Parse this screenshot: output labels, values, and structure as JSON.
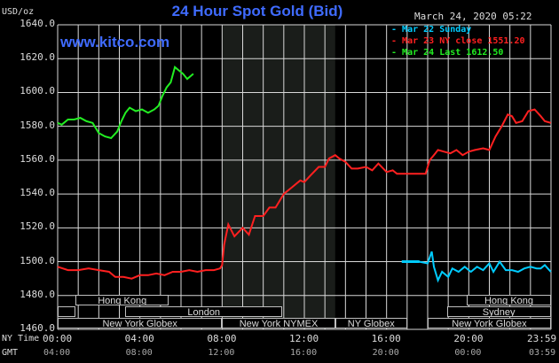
{
  "page": {
    "title": "24 Hour Spot Gold (Bid)",
    "website": "www.kitco.com",
    "unit_label": "USD/oz",
    "datestamp": "March 24, 2020 05:22",
    "time_axis_label_ny": "NY Time",
    "time_axis_label_gmt": "GMT"
  },
  "legend": [
    {
      "text": "Mar 22 Sunday",
      "color": "#00ccff"
    },
    {
      "text": "Mar 23 NY close 1551.20",
      "color": "#ff2020"
    },
    {
      "text": "Mar 24 Last 1612.50",
      "color": "#22ee22"
    }
  ],
  "y_ticks": [
    "1640.0",
    "1620.0",
    "1600.0",
    "1580.0",
    "1560.0",
    "1540.0",
    "1520.0",
    "1500.0",
    "1480.0",
    "1460.0"
  ],
  "x_ticks_ny": [
    "00:00",
    "04:00",
    "08:00",
    "12:00",
    "16:00",
    "20:00",
    "23:59"
  ],
  "x_ticks_gmt": [
    "04:00",
    "08:00",
    "12:00",
    "16:00",
    "20:00",
    "00:00",
    "03:59"
  ],
  "sessions": [
    {
      "label": "Hong Kong",
      "start_h": 0.88,
      "end_h": 5.4
    },
    {
      "label": "",
      "start_h": 0.0,
      "end_h": 0.88
    },
    {
      "label": "London",
      "start_h": 3.28,
      "end_h": 10.94
    },
    {
      "label": "",
      "start_h": 0.0,
      "end_h": 3.28
    },
    {
      "label": "New York Globex",
      "start_h": 0.0,
      "end_h": 8.0
    },
    {
      "label": "New York NYMEX",
      "start_h": 8.0,
      "end_h": 13.5
    },
    {
      "label": "NY Globex",
      "start_h": 13.5,
      "end_h": 17.0
    },
    {
      "label": "Hong Kong",
      "start_h": 19.91,
      "end_h": 23.99
    },
    {
      "label": "Sydney",
      "start_h": 18.93,
      "end_h": 23.99
    },
    {
      "label": "New York Globex",
      "start_h": 18.0,
      "end_h": 23.99
    }
  ],
  "chart_data": {
    "type": "line",
    "title": "24 Hour Spot Gold (Bid)",
    "ylabel": "USD/oz",
    "xlabel": "NY Time",
    "ylim": [
      1460,
      1640
    ],
    "xlim_hours": [
      0,
      24
    ],
    "shaded_region_hours": [
      8.0,
      13.5
    ],
    "series": [
      {
        "name": "Mar 22 Sunday",
        "color": "#00ccff",
        "x": [
          17.6,
          18.0,
          18.2,
          18.3,
          18.5,
          18.7,
          19.0,
          19.2,
          19.5,
          19.8,
          20.1,
          20.4,
          20.7,
          21.0,
          21.2,
          21.5,
          21.8,
          22.1,
          22.4,
          22.7,
          23.0,
          23.3,
          23.5,
          23.7,
          23.99
        ],
        "y": [
          1500,
          1499,
          1506,
          1497,
          1489,
          1494,
          1491,
          1496,
          1494,
          1497,
          1494,
          1497,
          1495,
          1499,
          1494,
          1500,
          1495,
          1495,
          1494,
          1496,
          1497,
          1496,
          1496,
          1498,
          1494
        ]
      },
      {
        "name": "Mar 23 NY close 1551.20",
        "color": "#ff2020",
        "x": [
          0.0,
          0.5,
          1.0,
          1.5,
          2.0,
          2.5,
          2.8,
          3.2,
          3.6,
          4.0,
          4.4,
          4.8,
          5.2,
          5.6,
          6.0,
          6.4,
          6.8,
          7.2,
          7.6,
          7.9,
          8.0,
          8.1,
          8.3,
          8.6,
          9.0,
          9.3,
          9.6,
          10.0,
          10.3,
          10.6,
          11.0,
          11.4,
          11.8,
          12.0,
          12.3,
          12.7,
          13.0,
          13.2,
          13.5,
          13.7,
          14.0,
          14.3,
          14.6,
          15.0,
          15.3,
          15.6,
          16.0,
          16.3,
          16.5,
          16.7,
          17.0,
          17.3,
          17.6,
          17.9,
          18.1,
          18.3,
          18.5,
          18.8,
          19.1,
          19.4,
          19.7,
          20.0,
          20.3,
          20.7,
          21.0,
          21.3,
          21.6,
          21.9,
          22.1,
          22.3,
          22.6,
          22.9,
          23.2,
          23.5,
          23.7,
          23.99
        ],
        "y": [
          1497,
          1495,
          1495,
          1496,
          1495,
          1494,
          1491,
          1491,
          1490,
          1492,
          1492,
          1493,
          1492,
          1494,
          1494,
          1495,
          1494,
          1495,
          1495,
          1496,
          1498,
          1510,
          1522,
          1515,
          1520,
          1516,
          1527,
          1527,
          1532,
          1532,
          1540,
          1544,
          1548,
          1547,
          1551,
          1556,
          1556,
          1561,
          1563,
          1561,
          1559,
          1555,
          1555,
          1556,
          1554,
          1558,
          1553,
          1554,
          1552,
          1552,
          1552,
          1552,
          1552,
          1552,
          1560,
          1563,
          1566,
          1565,
          1564,
          1566,
          1563,
          1565,
          1566,
          1567,
          1566,
          1574,
          1580,
          1587,
          1586,
          1582,
          1583,
          1589,
          1590,
          1586,
          1583,
          1582
        ]
      },
      {
        "name": "Mar 24 Last 1612.50",
        "color": "#22ee22",
        "x": [
          0.0,
          0.2,
          0.5,
          0.8,
          1.1,
          1.4,
          1.7,
          2.0,
          2.3,
          2.6,
          2.9,
          3.1,
          3.3,
          3.5,
          3.8,
          4.1,
          4.4,
          4.7,
          4.9,
          5.1,
          5.3,
          5.5,
          5.7,
          5.9,
          6.1,
          6.3,
          6.6
        ],
        "y": [
          1582,
          1581,
          1584,
          1584,
          1585,
          1583,
          1582,
          1576,
          1574,
          1573,
          1577,
          1583,
          1588,
          1591,
          1589,
          1590,
          1588,
          1590,
          1592,
          1598,
          1603,
          1606,
          1615,
          1613,
          1611,
          1608,
          1611
        ]
      }
    ]
  }
}
